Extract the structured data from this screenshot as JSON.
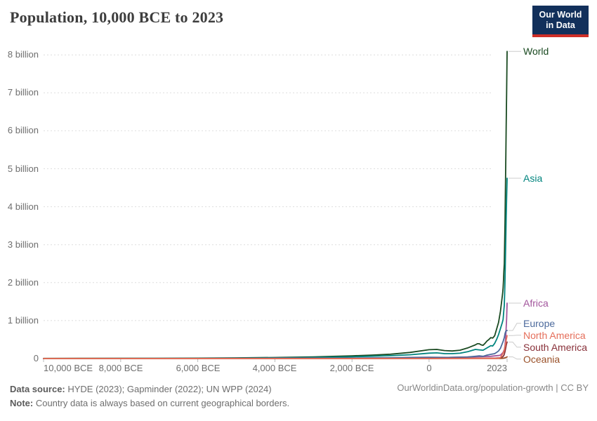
{
  "header": {
    "title": "Population, 10,000 BCE to 2023",
    "logo": {
      "line1": "Our World",
      "line2": "in Data",
      "bg_color": "#12305B",
      "bar_color": "#CE2E27"
    }
  },
  "footer": {
    "sources_label": "Data source:",
    "sources_text": " HYDE (2023); Gapminder (2022); UN WPP (2024)",
    "note_label": "Note:",
    "note_text": " Country data is always based on current geographical borders.",
    "link": "OurWorldinData.org/population-growth | CC BY"
  },
  "chart_data": {
    "type": "line",
    "title": "Population, 10,000 BCE to 2023",
    "xlabel": "",
    "ylabel": "",
    "units": "billions of people",
    "legend_position": "right",
    "grid": "dashed horizontal",
    "x_axis": {
      "range": [
        -10000,
        2023
      ],
      "ticks": [
        -10000,
        -8000,
        -6000,
        -4000,
        -2000,
        0,
        2023
      ],
      "tick_labels": [
        "10,000 BCE",
        "8,000 BCE",
        "6,000 BCE",
        "4,000 BCE",
        "2,000 BCE",
        "0",
        "2023"
      ]
    },
    "y_axis": {
      "range": [
        0,
        8000000000
      ],
      "ticks_billions": [
        8,
        7,
        6,
        5,
        4,
        3,
        2,
        1,
        0
      ],
      "tick_labels": [
        "8 billion",
        "7 billion",
        "6 billion",
        "5 billion",
        "4 billion",
        "3 billion",
        "2 billion",
        "1 billion",
        "0"
      ]
    },
    "series": [
      {
        "name": "World",
        "color": "#1A4A21",
        "end_value_billions": 8.09,
        "points": [
          [
            -10000,
            0.004
          ],
          [
            -9000,
            0.005
          ],
          [
            -8000,
            0.006
          ],
          [
            -7000,
            0.008
          ],
          [
            -6000,
            0.011
          ],
          [
            -5000,
            0.018
          ],
          [
            -4000,
            0.028
          ],
          [
            -3000,
            0.045
          ],
          [
            -2000,
            0.072
          ],
          [
            -1500,
            0.09
          ],
          [
            -1000,
            0.115
          ],
          [
            -500,
            0.16
          ],
          [
            0,
            0.232
          ],
          [
            200,
            0.24
          ],
          [
            400,
            0.21
          ],
          [
            600,
            0.2
          ],
          [
            800,
            0.22
          ],
          [
            1000,
            0.28
          ],
          [
            1100,
            0.32
          ],
          [
            1200,
            0.36
          ],
          [
            1250,
            0.39
          ],
          [
            1300,
            0.39
          ],
          [
            1350,
            0.36
          ],
          [
            1400,
            0.35
          ],
          [
            1450,
            0.4
          ],
          [
            1500,
            0.46
          ],
          [
            1550,
            0.5
          ],
          [
            1600,
            0.55
          ],
          [
            1650,
            0.54
          ],
          [
            1700,
            0.6
          ],
          [
            1750,
            0.77
          ],
          [
            1800,
            0.95
          ],
          [
            1850,
            1.24
          ],
          [
            1900,
            1.65
          ],
          [
            1910,
            1.75
          ],
          [
            1920,
            1.86
          ],
          [
            1930,
            2.07
          ],
          [
            1940,
            2.3
          ],
          [
            1950,
            2.49
          ],
          [
            1960,
            3.02
          ],
          [
            1970,
            3.68
          ],
          [
            1980,
            4.44
          ],
          [
            1990,
            5.32
          ],
          [
            2000,
            6.14
          ],
          [
            2010,
            6.96
          ],
          [
            2023,
            8.09
          ]
        ]
      },
      {
        "name": "Asia",
        "color": "#00847E",
        "end_value_billions": 4.75,
        "points": [
          [
            -10000,
            0.002
          ],
          [
            -8000,
            0.003
          ],
          [
            -6000,
            0.007
          ],
          [
            -5000,
            0.012
          ],
          [
            -4000,
            0.018
          ],
          [
            -3000,
            0.03
          ],
          [
            -2000,
            0.046
          ],
          [
            -1000,
            0.075
          ],
          [
            -500,
            0.1
          ],
          [
            0,
            0.142
          ],
          [
            200,
            0.15
          ],
          [
            400,
            0.13
          ],
          [
            600,
            0.13
          ],
          [
            800,
            0.14
          ],
          [
            1000,
            0.18
          ],
          [
            1100,
            0.21
          ],
          [
            1200,
            0.24
          ],
          [
            1300,
            0.23
          ],
          [
            1400,
            0.22
          ],
          [
            1500,
            0.28
          ],
          [
            1600,
            0.34
          ],
          [
            1650,
            0.33
          ],
          [
            1700,
            0.4
          ],
          [
            1750,
            0.5
          ],
          [
            1800,
            0.63
          ],
          [
            1850,
            0.79
          ],
          [
            1900,
            0.95
          ],
          [
            1920,
            1.03
          ],
          [
            1940,
            1.28
          ],
          [
            1950,
            1.4
          ],
          [
            1960,
            1.7
          ],
          [
            1970,
            2.14
          ],
          [
            1980,
            2.63
          ],
          [
            1990,
            3.21
          ],
          [
            2000,
            3.74
          ],
          [
            2010,
            4.21
          ],
          [
            2023,
            4.75
          ]
        ]
      },
      {
        "name": "Africa",
        "color": "#A2559C",
        "end_value_billions": 1.46,
        "points": [
          [
            -10000,
            0.001
          ],
          [
            -8000,
            0.001
          ],
          [
            -6000,
            0.002
          ],
          [
            -4000,
            0.005
          ],
          [
            -2000,
            0.01
          ],
          [
            -1000,
            0.016
          ],
          [
            0,
            0.026
          ],
          [
            500,
            0.03
          ],
          [
            1000,
            0.04
          ],
          [
            1500,
            0.055
          ],
          [
            1600,
            0.06
          ],
          [
            1700,
            0.07
          ],
          [
            1800,
            0.08
          ],
          [
            1850,
            0.09
          ],
          [
            1900,
            0.14
          ],
          [
            1920,
            0.16
          ],
          [
            1940,
            0.21
          ],
          [
            1950,
            0.23
          ],
          [
            1960,
            0.28
          ],
          [
            1970,
            0.36
          ],
          [
            1980,
            0.48
          ],
          [
            1990,
            0.63
          ],
          [
            2000,
            0.82
          ],
          [
            2010,
            1.04
          ],
          [
            2023,
            1.46
          ]
        ]
      },
      {
        "name": "Europe",
        "color": "#4C6A9C",
        "end_value_billions": 0.74,
        "points": [
          [
            -10000,
            0.001
          ],
          [
            -8000,
            0.001
          ],
          [
            -6000,
            0.002
          ],
          [
            -4000,
            0.004
          ],
          [
            -2000,
            0.013
          ],
          [
            -1000,
            0.02
          ],
          [
            -500,
            0.03
          ],
          [
            0,
            0.035
          ],
          [
            500,
            0.03
          ],
          [
            1000,
            0.04
          ],
          [
            1200,
            0.06
          ],
          [
            1300,
            0.07
          ],
          [
            1400,
            0.06
          ],
          [
            1500,
            0.09
          ],
          [
            1600,
            0.11
          ],
          [
            1700,
            0.13
          ],
          [
            1750,
            0.16
          ],
          [
            1800,
            0.2
          ],
          [
            1850,
            0.27
          ],
          [
            1900,
            0.4
          ],
          [
            1920,
            0.45
          ],
          [
            1940,
            0.52
          ],
          [
            1950,
            0.55
          ],
          [
            1960,
            0.6
          ],
          [
            1970,
            0.66
          ],
          [
            1980,
            0.69
          ],
          [
            1990,
            0.72
          ],
          [
            2000,
            0.73
          ],
          [
            2010,
            0.735
          ],
          [
            2023,
            0.74
          ]
        ]
      },
      {
        "name": "North America",
        "color": "#E56E5A",
        "end_value_billions": 0.6,
        "points": [
          [
            -10000,
            0.0005
          ],
          [
            -2000,
            0.001
          ],
          [
            0,
            0.002
          ],
          [
            500,
            0.002
          ],
          [
            1000,
            0.003
          ],
          [
            1500,
            0.006
          ],
          [
            1600,
            0.004
          ],
          [
            1700,
            0.003
          ],
          [
            1750,
            0.004
          ],
          [
            1800,
            0.007
          ],
          [
            1850,
            0.026
          ],
          [
            1900,
            0.105
          ],
          [
            1920,
            0.147
          ],
          [
            1940,
            0.181
          ],
          [
            1950,
            0.227
          ],
          [
            1960,
            0.277
          ],
          [
            1970,
            0.32
          ],
          [
            1980,
            0.368
          ],
          [
            1990,
            0.421
          ],
          [
            2000,
            0.486
          ],
          [
            2010,
            0.542
          ],
          [
            2023,
            0.604
          ]
        ]
      },
      {
        "name": "South America",
        "color": "#883039",
        "end_value_billions": 0.43,
        "points": [
          [
            -10000,
            0.0005
          ],
          [
            -2000,
            0.002
          ],
          [
            0,
            0.004
          ],
          [
            500,
            0.006
          ],
          [
            1000,
            0.008
          ],
          [
            1500,
            0.011
          ],
          [
            1600,
            0.009
          ],
          [
            1700,
            0.01
          ],
          [
            1800,
            0.015
          ],
          [
            1850,
            0.02
          ],
          [
            1900,
            0.04
          ],
          [
            1920,
            0.056
          ],
          [
            1940,
            0.085
          ],
          [
            1950,
            0.114
          ],
          [
            1960,
            0.148
          ],
          [
            1970,
            0.193
          ],
          [
            1980,
            0.242
          ],
          [
            1990,
            0.297
          ],
          [
            2000,
            0.35
          ],
          [
            2010,
            0.394
          ],
          [
            2023,
            0.434
          ]
        ]
      },
      {
        "name": "Oceania",
        "color": "#9A5129",
        "end_value_billions": 0.045,
        "points": [
          [
            -10000,
            0.0002
          ],
          [
            0,
            0.001
          ],
          [
            1000,
            0.001
          ],
          [
            1500,
            0.002
          ],
          [
            1800,
            0.002
          ],
          [
            1850,
            0.003
          ],
          [
            1900,
            0.006
          ],
          [
            1950,
            0.013
          ],
          [
            1970,
            0.02
          ],
          [
            1990,
            0.027
          ],
          [
            2000,
            0.031
          ],
          [
            2010,
            0.037
          ],
          [
            2023,
            0.045
          ]
        ]
      }
    ]
  }
}
